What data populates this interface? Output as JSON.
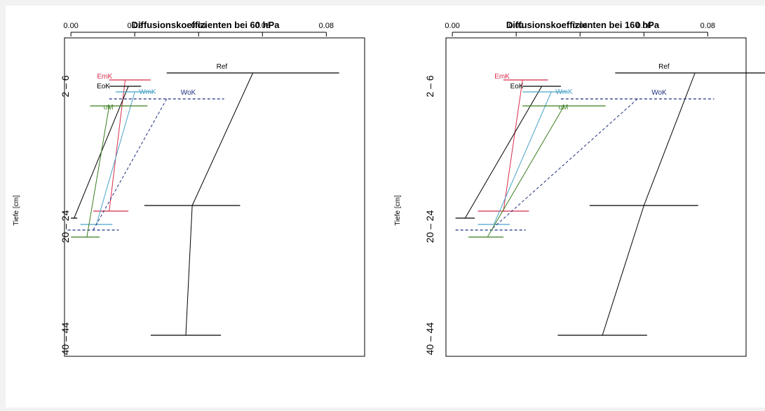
{
  "chart_data": [
    {
      "type": "line",
      "title": "Diffusionskoeffizienten bei 60 hPa",
      "xlabel": "",
      "ylabel": "Tiefe [cm]",
      "xlim": [
        -0.002,
        0.092
      ],
      "x_ticks": [
        "0.00",
        "0.02",
        "0.04",
        "0.06",
        "0.08"
      ],
      "x_tick_values": [
        0,
        0.02,
        0.04,
        0.06,
        0.08
      ],
      "depth_groups": [
        "2 – 6",
        "20 – 24",
        "40 – 44"
      ],
      "grid": false,
      "series": [
        {
          "name": "Ref",
          "color": "#000000",
          "dash": false,
          "points": [
            {
              "depth": 2,
              "x": 0.057,
              "lo": 0.03,
              "hi": 0.084
            },
            {
              "depth": 20,
              "x": 0.038,
              "lo": 0.023,
              "hi": 0.053
            },
            {
              "depth": 40,
              "x": 0.036,
              "lo": 0.025,
              "hi": 0.047
            }
          ]
        },
        {
          "name": "EmK",
          "color": "#d62c4a",
          "dash": false,
          "points": [
            {
              "depth": 4,
              "x": 0.017,
              "lo": 0.012,
              "hi": 0.025
            },
            {
              "depth": 21,
              "x": 0.012,
              "lo": 0.007,
              "hi": 0.018
            }
          ]
        },
        {
          "name": "EoK",
          "color": "#000000",
          "dash": false,
          "points": [
            {
              "depth": 5,
              "x": 0.018,
              "lo": 0.012,
              "hi": 0.022
            },
            {
              "depth": 22,
              "x": 0.001,
              "lo": 0.0,
              "hi": 0.002
            }
          ]
        },
        {
          "name": "WmK",
          "color": "#4aa3c8",
          "dash": false,
          "points": [
            {
              "depth": 6,
              "x": 0.02,
              "lo": 0.014,
              "hi": 0.026
            },
            {
              "depth": 23,
              "x": 0.008,
              "lo": 0.003,
              "hi": 0.013
            }
          ]
        },
        {
          "name": "WoK",
          "color": "#1f2f80",
          "dash": true,
          "points": [
            {
              "depth": 7,
              "x": 0.03,
              "lo": 0.012,
              "hi": 0.048
            },
            {
              "depth": 25,
              "x": 0.007,
              "lo": -0.001,
              "hi": 0.015
            }
          ]
        },
        {
          "name": "oM",
          "color": "#3a7d1e",
          "dash": false,
          "points": [
            {
              "depth": 8,
              "x": 0.012,
              "lo": 0.006,
              "hi": 0.024
            },
            {
              "depth": 26,
              "x": 0.005,
              "lo": 0.0,
              "hi": 0.009
            }
          ]
        }
      ]
    },
    {
      "type": "line",
      "title": "Diffusionskoeffizienten bei 160 hPa",
      "xlabel": "",
      "ylabel": "Tiefe [cm]",
      "xlim": [
        -0.002,
        0.092
      ],
      "x_ticks": [
        "0.00",
        "0.02",
        "0.04",
        "0.06",
        "0.08"
      ],
      "x_tick_values": [
        0,
        0.02,
        0.04,
        0.06,
        0.08
      ],
      "depth_groups": [
        "2 – 6",
        "20 – 24",
        "40 – 44"
      ],
      "grid": false,
      "series": [
        {
          "name": "Ref",
          "color": "#000000",
          "dash": false,
          "points": [
            {
              "depth": 2,
              "x": 0.076,
              "lo": 0.051,
              "hi": 0.101
            },
            {
              "depth": 20,
              "x": 0.06,
              "lo": 0.043,
              "hi": 0.077
            },
            {
              "depth": 40,
              "x": 0.047,
              "lo": 0.033,
              "hi": 0.061
            }
          ]
        },
        {
          "name": "EmK",
          "color": "#d62c4a",
          "dash": false,
          "points": [
            {
              "depth": 4,
              "x": 0.022,
              "lo": 0.016,
              "hi": 0.03
            },
            {
              "depth": 21,
              "x": 0.016,
              "lo": 0.008,
              "hi": 0.024
            }
          ]
        },
        {
          "name": "EoK",
          "color": "#000000",
          "dash": false,
          "points": [
            {
              "depth": 5,
              "x": 0.028,
              "lo": 0.022,
              "hi": 0.034
            },
            {
              "depth": 22,
              "x": 0.004,
              "lo": 0.001,
              "hi": 0.007
            }
          ]
        },
        {
          "name": "WmK",
          "color": "#4aa3c8",
          "dash": false,
          "points": [
            {
              "depth": 6,
              "x": 0.031,
              "lo": 0.022,
              "hi": 0.036
            },
            {
              "depth": 23,
              "x": 0.013,
              "lo": 0.008,
              "hi": 0.018
            }
          ]
        },
        {
          "name": "WoK",
          "color": "#1f2f80",
          "dash": true,
          "points": [
            {
              "depth": 7,
              "x": 0.058,
              "lo": 0.034,
              "hi": 0.082
            },
            {
              "depth": 25,
              "x": 0.012,
              "lo": 0.001,
              "hi": 0.023
            }
          ]
        },
        {
          "name": "oM",
          "color": "#3a7d1e",
          "dash": false,
          "points": [
            {
              "depth": 8,
              "x": 0.035,
              "lo": 0.022,
              "hi": 0.048
            },
            {
              "depth": 26,
              "x": 0.011,
              "lo": 0.005,
              "hi": 0.016
            }
          ]
        }
      ]
    }
  ]
}
